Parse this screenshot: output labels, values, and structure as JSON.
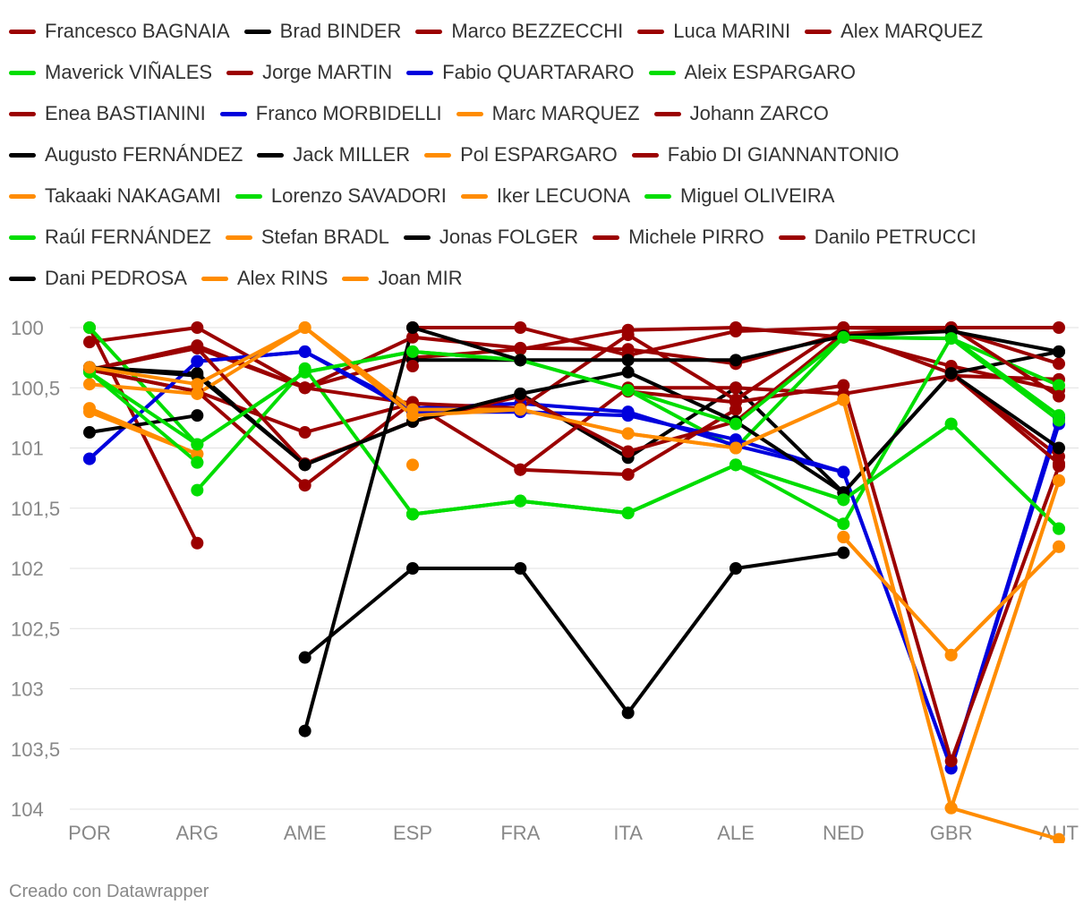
{
  "footer": "Creado con Datawrapper",
  "colors": {
    "dark_red": "#9b0000",
    "black": "#000000",
    "green": "#00dd00",
    "blue": "#0000dd",
    "orange": "#ff8c00",
    "grid": "#e0e0e0",
    "axis_text": "#888888"
  },
  "chart_data": {
    "type": "line",
    "title": "",
    "xlabel": "",
    "ylabel": "",
    "y_reversed": true,
    "ylim": [
      100,
      104
    ],
    "yticks": [
      100,
      100.5,
      101,
      101.5,
      102,
      102.5,
      103,
      103.5,
      104
    ],
    "ytick_labels": [
      "100",
      "100,5",
      "101",
      "101,5",
      "102",
      "102,5",
      "103",
      "103,5",
      "104"
    ],
    "categories": [
      "POR",
      "ARG",
      "AME",
      "ESP",
      "FRA",
      "ITA",
      "ALE",
      "NED",
      "GBR",
      "AUT"
    ],
    "legend_position": "top",
    "series": [
      {
        "name": "Francesco BAGNAIA",
        "color": "#9b0000",
        "values": [
          100.35,
          100.15,
          100.5,
          100.25,
          100.18,
          100.02,
          100.0,
          100.08,
          100.32,
          100.52
        ]
      },
      {
        "name": "Brad BINDER",
        "color": "#000000",
        "values": [
          100.33,
          100.38,
          101.14,
          100.78,
          100.55,
          101.08,
          100.5,
          101.37,
          100.38,
          100.2
        ]
      },
      {
        "name": "Marco BEZZECCHI",
        "color": "#9b0000",
        "values": [
          100.12,
          100.0,
          100.5,
          100.08,
          100.17,
          100.18,
          100.3,
          100.05,
          100.0,
          100.0
        ]
      },
      {
        "name": "Luca MARINI",
        "color": "#9b0000",
        "values": [
          100.35,
          100.53,
          100.87,
          100.63,
          101.18,
          100.5,
          100.5,
          100.55,
          100.4,
          100.43
        ]
      },
      {
        "name": "Alex MARQUEZ",
        "color": "#9b0000",
        "values": [
          100.0,
          101.79,
          null,
          100.0,
          100.0,
          100.23,
          100.03,
          100.0,
          100.02,
          100.3
        ]
      },
      {
        "name": "Maverick VIÑALES",
        "color": "#00dd00",
        "values": [
          100.0,
          100.97,
          100.37,
          100.2,
          100.27,
          100.52,
          101.0,
          100.08,
          100.09,
          100.48
        ]
      },
      {
        "name": "Jorge MARTIN",
        "color": "#9b0000",
        "values": [
          100.35,
          100.53,
          101.31,
          100.62,
          null,
          101.22,
          100.68,
          null,
          100.38,
          101.07
        ]
      },
      {
        "name": "Fabio QUARTARARO",
        "color": "#0000dd",
        "values": [
          101.09,
          100.28,
          100.2,
          100.67,
          100.63,
          100.7,
          100.98,
          101.2,
          103.66,
          100.75
        ]
      },
      {
        "name": "Aleix ESPARGARO",
        "color": "#00dd00",
        "values": [
          null,
          101.35,
          100.34,
          101.55,
          101.44,
          101.54,
          101.14,
          101.63,
          100.08,
          100.73
        ]
      },
      {
        "name": "Enea BASTIANINI",
        "color": "#9b0000",
        "values": [
          100.35,
          100.17,
          100.5,
          100.63,
          100.67,
          100.06,
          100.6,
          100.0,
          100.0,
          100.57
        ]
      },
      {
        "name": "Franco MORBIDELLI",
        "color": "#0000dd",
        "values": [
          101.09,
          100.28,
          100.2,
          100.7,
          100.7,
          100.73,
          100.93,
          101.2,
          103.66,
          100.8
        ]
      },
      {
        "name": "Marc MARQUEZ",
        "color": "#ff8c00",
        "values": [
          100.47,
          100.55,
          100.0,
          100.68,
          100.68,
          100.88,
          101.0,
          100.6,
          103.99,
          101.27
        ]
      },
      {
        "name": "Johann ZARCO",
        "color": "#9b0000",
        "values": [
          100.35,
          100.17,
          101.13,
          100.78,
          100.57,
          101.03,
          100.78,
          100.05,
          100.38,
          101.13
        ]
      },
      {
        "name": "Augusto FERNÁNDEZ",
        "color": "#000000",
        "values": [
          100.87,
          100.73,
          null,
          100.27,
          100.27,
          100.27,
          100.27,
          100.07,
          100.03,
          100.2
        ]
      },
      {
        "name": "Jack MILLER",
        "color": "#000000",
        "values": [
          100.33,
          100.4,
          101.14,
          100.78,
          100.55,
          100.37,
          100.78,
          101.37,
          100.38,
          101.0
        ]
      },
      {
        "name": "Pol ESPARGARO",
        "color": "#ff8c00",
        "values": [
          100.7,
          101.05,
          null,
          101.55,
          null,
          null,
          null,
          101.74,
          102.72,
          101.82
        ]
      },
      {
        "name": "Fabio DI GIANNANTONIO",
        "color": "#9b0000",
        "values": [
          null,
          null,
          null,
          null,
          null,
          100.53,
          100.62,
          100.48,
          103.6,
          101.15
        ]
      },
      {
        "name": "Takaaki NAKAGAMI",
        "color": "#ff8c00",
        "values": [
          100.67,
          101.05,
          null,
          101.14,
          null,
          null,
          null,
          101.74,
          102.72,
          101.82
        ]
      },
      {
        "name": "Lorenzo SAVADORI",
        "color": "#00dd00",
        "values": [
          null,
          101.12,
          null,
          101.55,
          101.44,
          101.54,
          101.14,
          101.43,
          100.8,
          101.67
        ]
      },
      {
        "name": "Iker LECUONA",
        "color": "#ff8c00",
        "values": [
          null,
          null,
          null,
          null,
          null,
          null,
          null,
          null,
          103.99,
          104.25
        ]
      },
      {
        "name": "Miguel OLIVEIRA",
        "color": "#00dd00",
        "values": [
          100.37,
          100.97,
          100.37,
          100.2,
          100.27,
          100.52,
          100.8,
          100.08,
          100.09,
          100.77
        ]
      },
      {
        "name": "Raúl FERNÁNDEZ",
        "color": "#00dd00",
        "values": [
          100.37,
          101.12,
          null,
          101.55,
          101.44,
          101.54,
          101.14,
          101.43,
          100.8,
          101.67
        ]
      },
      {
        "name": "Stefan BRADL",
        "color": "#ff8c00",
        "values": [
          null,
          null,
          null,
          null,
          null,
          null,
          null,
          null,
          null,
          101.27
        ]
      },
      {
        "name": "Jonas FOLGER",
        "color": "#000000",
        "values": [
          null,
          null,
          102.74,
          102.0,
          102.0,
          103.2,
          102.0,
          101.87,
          null,
          null
        ]
      },
      {
        "name": "Michele PIRRO",
        "color": "#9b0000",
        "values": [
          null,
          null,
          null,
          null,
          101.18,
          101.22,
          null,
          null,
          null,
          null
        ]
      },
      {
        "name": "Danilo PETRUCCI",
        "color": "#9b0000",
        "values": [
          null,
          null,
          null,
          100.32,
          null,
          null,
          null,
          null,
          null,
          null
        ]
      },
      {
        "name": "Dani PEDROSA",
        "color": "#000000",
        "values": [
          null,
          null,
          103.35,
          100.0,
          100.27,
          null,
          null,
          null,
          null,
          null
        ]
      },
      {
        "name": "Alex RINS",
        "color": "#ff8c00",
        "values": [
          100.33,
          100.47,
          100.0,
          100.73,
          100.68,
          100.88,
          101.0,
          100.6,
          103.99,
          101.27
        ]
      },
      {
        "name": "Joan MIR",
        "color": "#ff8c00",
        "values": [
          null,
          null,
          null,
          null,
          null,
          null,
          null,
          null,
          null,
          null
        ]
      }
    ]
  }
}
